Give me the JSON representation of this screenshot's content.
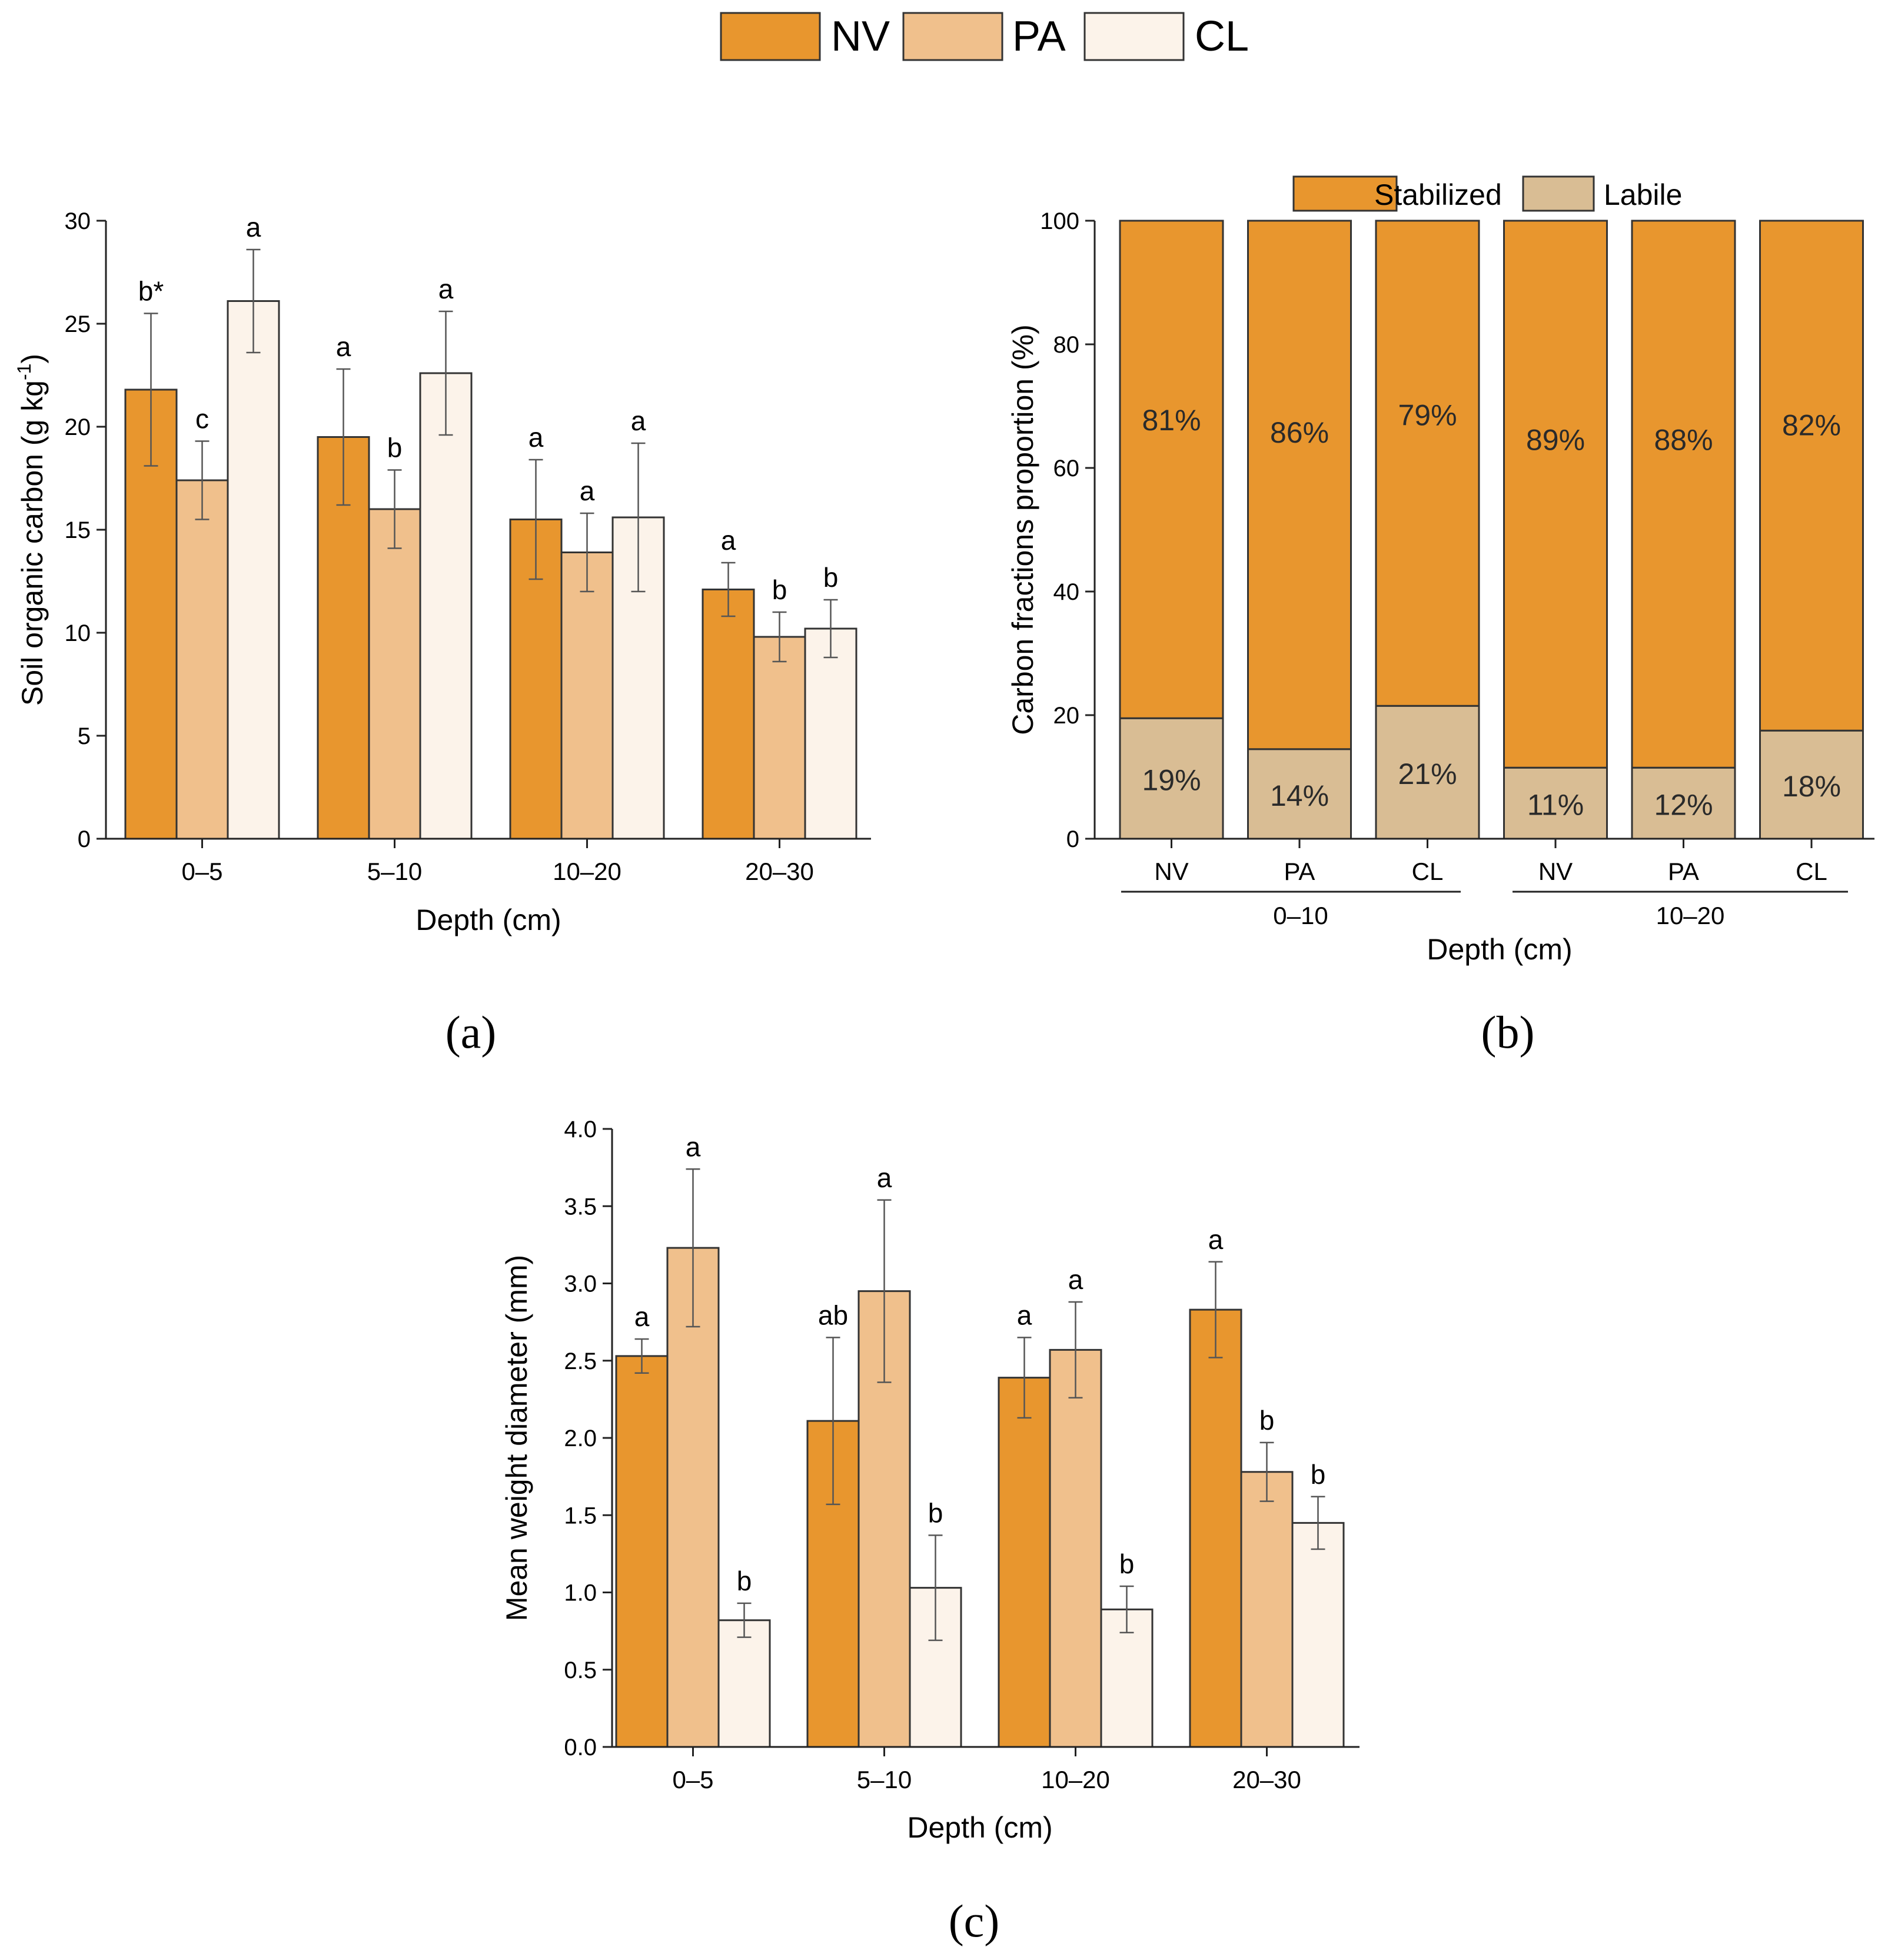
{
  "legend_top": {
    "items": [
      {
        "label": "NV",
        "color": "#e8962e"
      },
      {
        "label": "PA",
        "color": "#f0c08c"
      },
      {
        "label": "CL",
        "color": "#fcf3ea"
      }
    ]
  },
  "panels": {
    "a": {
      "label": "(a)"
    },
    "b": {
      "label": "(b)"
    },
    "c": {
      "label": "(c)"
    }
  },
  "chart_data": [
    {
      "id": "a",
      "type": "bar",
      "xlabel": "Depth (cm)",
      "ylabel": "Soil organic carbon (g kg-1)",
      "ylabel_main": "Soil organic carbon (g kg",
      "ylabel_sup": "-1",
      "ylabel_close": ")",
      "ylim": [
        0,
        30
      ],
      "yticks": [
        "0",
        "5",
        "10",
        "15",
        "20",
        "25",
        "30"
      ],
      "categories": [
        "0–5",
        "5–10",
        "10–20",
        "20–30"
      ],
      "series": [
        {
          "name": "NV",
          "values": [
            21.8,
            19.5,
            15.5,
            12.1
          ],
          "errors": [
            3.7,
            3.3,
            2.9,
            1.3
          ],
          "letters": [
            "b*",
            "a",
            "a",
            "a"
          ]
        },
        {
          "name": "PA",
          "values": [
            17.4,
            16.0,
            13.9,
            9.8
          ],
          "errors": [
            1.9,
            1.9,
            1.9,
            1.2
          ],
          "letters": [
            "c",
            "b",
            "a",
            "b"
          ]
        },
        {
          "name": "CL",
          "values": [
            26.1,
            22.6,
            15.6,
            10.2
          ],
          "errors": [
            2.5,
            3.0,
            3.6,
            1.4
          ],
          "letters": [
            "a",
            "a",
            "a",
            "b"
          ]
        }
      ]
    },
    {
      "id": "b",
      "type": "bar",
      "stacked": true,
      "xlabel": "Depth (cm)",
      "ylabel": "Carbon fractions proportion (%)",
      "ylim": [
        0,
        100
      ],
      "yticks": [
        "0",
        "20",
        "40",
        "60",
        "80",
        "100"
      ],
      "categories": [
        "NV",
        "PA",
        "CL",
        "NV",
        "PA",
        "CL"
      ],
      "groups": [
        {
          "label": "0–10",
          "members": [
            0,
            1,
            2
          ]
        },
        {
          "label": "10–20",
          "members": [
            3,
            4,
            5
          ]
        }
      ],
      "legend": [
        {
          "label": "Stabilized",
          "color": "#e8962e"
        },
        {
          "label": "Labile",
          "color": "#d9bd94"
        }
      ],
      "series": [
        {
          "name": "Labile",
          "values": [
            19.5,
            14.5,
            21.5,
            11.5,
            11.5,
            17.5
          ],
          "labels": [
            "19%",
            "14%",
            "21%",
            "11%",
            "12%",
            "18%"
          ]
        },
        {
          "name": "Stabilized",
          "values": [
            80.5,
            85.5,
            78.5,
            88.5,
            88.5,
            82.5
          ],
          "labels": [
            "81%",
            "86%",
            "79%",
            "89%",
            "88%",
            "82%"
          ]
        }
      ]
    },
    {
      "id": "c",
      "type": "bar",
      "xlabel": "Depth (cm)",
      "ylabel": "Mean weight diameter (mm)",
      "ylim": [
        0,
        4.0
      ],
      "yticks": [
        "0.0",
        "0.5",
        "1.0",
        "1.5",
        "2.0",
        "2.5",
        "3.0",
        "3.5",
        "4.0"
      ],
      "categories": [
        "0–5",
        "5–10",
        "10–20",
        "20–30"
      ],
      "series": [
        {
          "name": "NV",
          "values": [
            2.53,
            2.11,
            2.39,
            2.83
          ],
          "errors": [
            0.11,
            0.54,
            0.26,
            0.31
          ],
          "letters": [
            "a",
            "ab",
            "a",
            "a"
          ]
        },
        {
          "name": "PA",
          "values": [
            3.23,
            2.95,
            2.57,
            1.78
          ],
          "errors": [
            0.51,
            0.59,
            0.31,
            0.19
          ],
          "letters": [
            "a",
            "a",
            "a",
            "b"
          ]
        },
        {
          "name": "CL",
          "values": [
            0.82,
            1.03,
            0.89,
            1.45
          ],
          "errors": [
            0.11,
            0.34,
            0.15,
            0.17
          ],
          "letters": [
            "b",
            "b",
            "b",
            "b"
          ]
        }
      ]
    }
  ]
}
